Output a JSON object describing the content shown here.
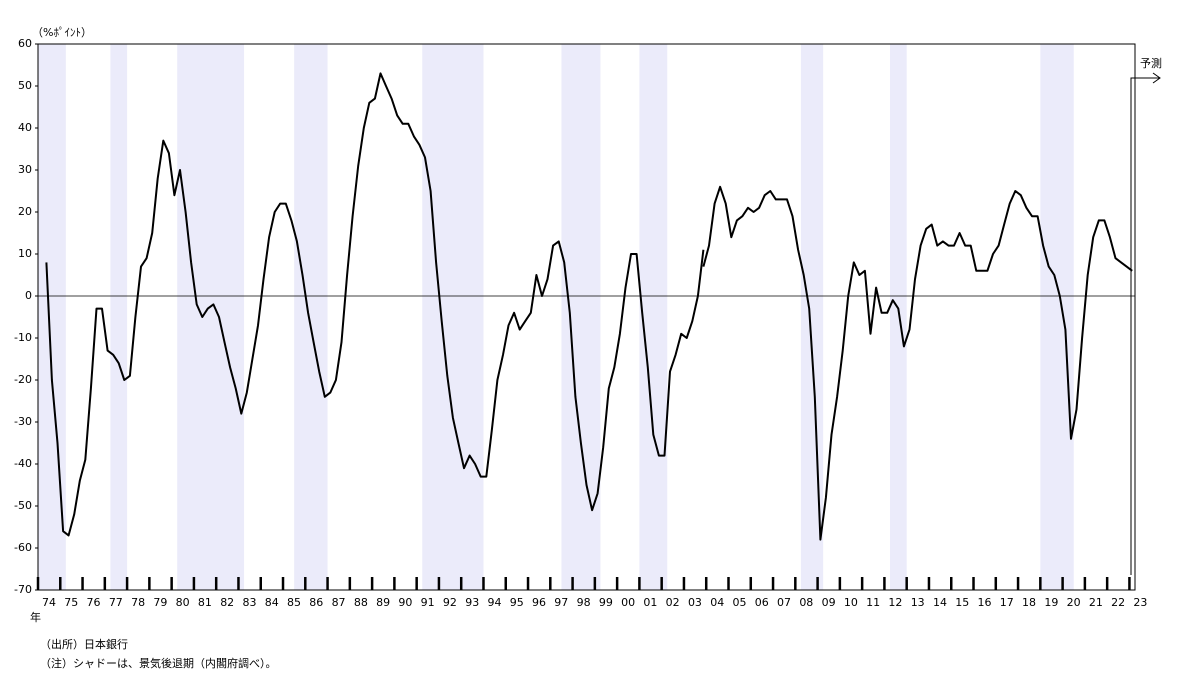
{
  "chart_data": {
    "type": "line",
    "y_unit": "（%ﾎﾟｲﾝﾄ）",
    "x_unit": "年",
    "annotation": "予測",
    "notes": [
      "（出所）日本銀行",
      "（注）シャドーは、景気後退期（内閣府調べ）。"
    ],
    "ylim": [
      -70,
      60
    ],
    "yticks": [
      -70,
      -60,
      -50,
      -40,
      -30,
      -20,
      -10,
      0,
      10,
      20,
      30,
      40,
      50,
      60
    ],
    "xlim": [
      1974,
      2023.25
    ],
    "xticks": [
      {
        "value": 1974,
        "label": "74"
      },
      {
        "value": 1975,
        "label": "75"
      },
      {
        "value": 1976,
        "label": "76"
      },
      {
        "value": 1977,
        "label": "77"
      },
      {
        "value": 1978,
        "label": "78"
      },
      {
        "value": 1979,
        "label": "79"
      },
      {
        "value": 1980,
        "label": "80"
      },
      {
        "value": 1981,
        "label": "81"
      },
      {
        "value": 1982,
        "label": "82"
      },
      {
        "value": 1983,
        "label": "83"
      },
      {
        "value": 1984,
        "label": "84"
      },
      {
        "value": 1985,
        "label": "85"
      },
      {
        "value": 1986,
        "label": "86"
      },
      {
        "value": 1987,
        "label": "87"
      },
      {
        "value": 1988,
        "label": "88"
      },
      {
        "value": 1989,
        "label": "89"
      },
      {
        "value": 1990,
        "label": "90"
      },
      {
        "value": 1991,
        "label": "91"
      },
      {
        "value": 1992,
        "label": "92"
      },
      {
        "value": 1993,
        "label": "93"
      },
      {
        "value": 1994,
        "label": "94"
      },
      {
        "value": 1995,
        "label": "95"
      },
      {
        "value": 1996,
        "label": "96"
      },
      {
        "value": 1997,
        "label": "97"
      },
      {
        "value": 1998,
        "label": "98"
      },
      {
        "value": 1999,
        "label": "99"
      },
      {
        "value": 2000,
        "label": "00"
      },
      {
        "value": 2001,
        "label": "01"
      },
      {
        "value": 2002,
        "label": "02"
      },
      {
        "value": 2003,
        "label": "03"
      },
      {
        "value": 2004,
        "label": "04"
      },
      {
        "value": 2005,
        "label": "05"
      },
      {
        "value": 2006,
        "label": "06"
      },
      {
        "value": 2007,
        "label": "07"
      },
      {
        "value": 2008,
        "label": "08"
      },
      {
        "value": 2009,
        "label": "09"
      },
      {
        "value": 2010,
        "label": "10"
      },
      {
        "value": 2011,
        "label": "11"
      },
      {
        "value": 2012,
        "label": "12"
      },
      {
        "value": 2013,
        "label": "13"
      },
      {
        "value": 2014,
        "label": "14"
      },
      {
        "value": 2015,
        "label": "15"
      },
      {
        "value": 2016,
        "label": "16"
      },
      {
        "value": 2017,
        "label": "17"
      },
      {
        "value": 2018,
        "label": "18"
      },
      {
        "value": 2019,
        "label": "19"
      },
      {
        "value": 2020,
        "label": "20"
      },
      {
        "value": 2021,
        "label": "21"
      },
      {
        "value": 2022,
        "label": "22"
      },
      {
        "value": 2023,
        "label": "23"
      }
    ],
    "shaded_periods": [
      [
        1974,
        1975.25
      ],
      [
        1977.25,
        1978
      ],
      [
        1980.25,
        1983.25
      ],
      [
        1985.5,
        1987
      ],
      [
        1991.25,
        1994
      ],
      [
        1997.5,
        1999.25
      ],
      [
        2001,
        2002.25
      ],
      [
        2008.25,
        2009.25
      ],
      [
        2012.25,
        2013
      ],
      [
        2019,
        2020.5
      ]
    ],
    "shade_color": "#ebebfa",
    "series": [
      {
        "color": "#000000",
        "x": [
          1974.375,
          1974.625,
          1974.875,
          1975.125,
          1975.375,
          1975.625,
          1975.875,
          1976.125,
          1976.375,
          1976.625,
          1976.875,
          1977.125,
          1977.375,
          1977.625,
          1977.875,
          1978.125,
          1978.375,
          1978.625,
          1978.875,
          1979.125,
          1979.375,
          1979.625,
          1979.875,
          1980.125,
          1980.375,
          1980.625,
          1980.875,
          1981.125,
          1981.375,
          1981.625,
          1981.875,
          1982.125,
          1982.375,
          1982.625,
          1982.875,
          1983.125,
          1983.375,
          1983.625,
          1983.875,
          1984.125,
          1984.375,
          1984.625,
          1984.875,
          1985.125,
          1985.375,
          1985.625,
          1985.875,
          1986.125,
          1986.375,
          1986.625,
          1986.875,
          1987.125,
          1987.375,
          1987.625,
          1987.875,
          1988.125,
          1988.375,
          1988.625,
          1988.875,
          1989.125,
          1989.375,
          1989.625,
          1989.875,
          1990.125,
          1990.375,
          1990.625,
          1990.875,
          1991.125,
          1991.375,
          1991.625,
          1991.875,
          1992.125,
          1992.375,
          1992.625,
          1992.875,
          1993.125,
          1993.375,
          1993.625,
          1993.875,
          1994.125,
          1994.375,
          1994.625,
          1994.875,
          1995.125,
          1995.375,
          1995.625,
          1995.875,
          1996.125,
          1996.375,
          1996.625,
          1996.875,
          1997.125,
          1997.375,
          1997.625,
          1997.875,
          1998.125,
          1998.375,
          1998.625,
          1998.875,
          1999.125,
          1999.375,
          1999.625,
          1999.875,
          2000.125,
          2000.375,
          2000.625,
          2000.875,
          2001.125,
          2001.375,
          2001.625,
          2001.875,
          2002.125,
          2002.375,
          2002.625,
          2002.875,
          2003.125,
          2003.375,
          2003.625,
          2003.875
        ],
        "values": [
          8,
          -20,
          -35,
          -56,
          -57,
          -52,
          -44,
          -39,
          -22,
          -3,
          -3,
          -13,
          -14,
          -16,
          -20,
          -19,
          -5,
          7,
          9,
          15,
          28,
          37,
          34,
          24,
          30,
          20,
          8,
          -2,
          -5,
          -3,
          -2,
          -5,
          -11,
          -17,
          -22,
          -28,
          -23,
          -15,
          -7,
          4,
          14,
          20,
          22,
          22,
          18,
          13,
          5,
          -4,
          -11,
          -18,
          -24,
          -23,
          -20,
          -11,
          5,
          19,
          31,
          40,
          46,
          47,
          53,
          50,
          47,
          43,
          41,
          41,
          38,
          36,
          33,
          25,
          8,
          -6,
          -19,
          -29,
          -35,
          -41,
          -38,
          -40,
          -43,
          -43,
          -32,
          -20,
          -14,
          -7,
          -4,
          -8,
          -6,
          -4,
          5,
          0,
          4,
          12,
          13,
          8,
          -4,
          -24,
          -35,
          -45,
          -51,
          -47,
          -36,
          -22,
          -17,
          -9,
          2,
          10,
          10,
          -4,
          -17,
          -33,
          -38,
          -38,
          -18,
          -14,
          -9,
          -10,
          -6,
          0,
          11
        ]
      },
      {
        "color": "#000000",
        "x": [
          2003.875,
          2004.125,
          2004.375,
          2004.625,
          2004.875,
          2005.125,
          2005.375,
          2005.625,
          2005.875,
          2006.125,
          2006.375,
          2006.625,
          2006.875,
          2007.125,
          2007.375,
          2007.625,
          2007.875,
          2008.125,
          2008.375,
          2008.625,
          2008.875,
          2009.125,
          2009.375,
          2009.625,
          2009.875,
          2010.125,
          2010.375,
          2010.625,
          2010.875,
          2011.125,
          2011.375,
          2011.625,
          2011.875,
          2012.125,
          2012.375,
          2012.625,
          2012.875,
          2013.125,
          2013.375,
          2013.625,
          2013.875,
          2014.125,
          2014.375,
          2014.625,
          2014.875,
          2015.125,
          2015.375,
          2015.625,
          2015.875,
          2016.125,
          2016.375,
          2016.625,
          2016.875,
          2017.125,
          2017.375,
          2017.625,
          2017.875,
          2018.125,
          2018.375,
          2018.625,
          2018.875,
          2019.125,
          2019.375,
          2019.625,
          2019.875,
          2020.125,
          2020.375,
          2020.625,
          2020.875,
          2021.125,
          2021.375,
          2021.625,
          2021.875,
          2022.125,
          2022.375,
          2022.625,
          2022.875,
          2023.125
        ],
        "values": [
          7,
          12,
          22,
          26,
          22,
          14,
          18,
          19,
          21,
          20,
          21,
          24,
          25,
          23,
          23,
          23,
          19,
          11,
          5,
          -3,
          -24,
          -58,
          -48,
          -33,
          -24,
          -13,
          0,
          8,
          5,
          6,
          -9,
          2,
          -4,
          -4,
          -1,
          -3,
          -12,
          -8,
          4,
          12,
          16,
          17,
          12,
          13,
          12,
          12,
          15,
          12,
          12,
          6,
          6,
          6,
          10,
          12,
          17,
          22,
          25,
          24,
          21,
          19,
          19,
          12,
          7,
          5,
          0,
          -8,
          -34,
          -27,
          -10,
          5,
          14,
          18,
          18,
          14,
          9,
          8,
          7,
          6
        ]
      }
    ]
  }
}
